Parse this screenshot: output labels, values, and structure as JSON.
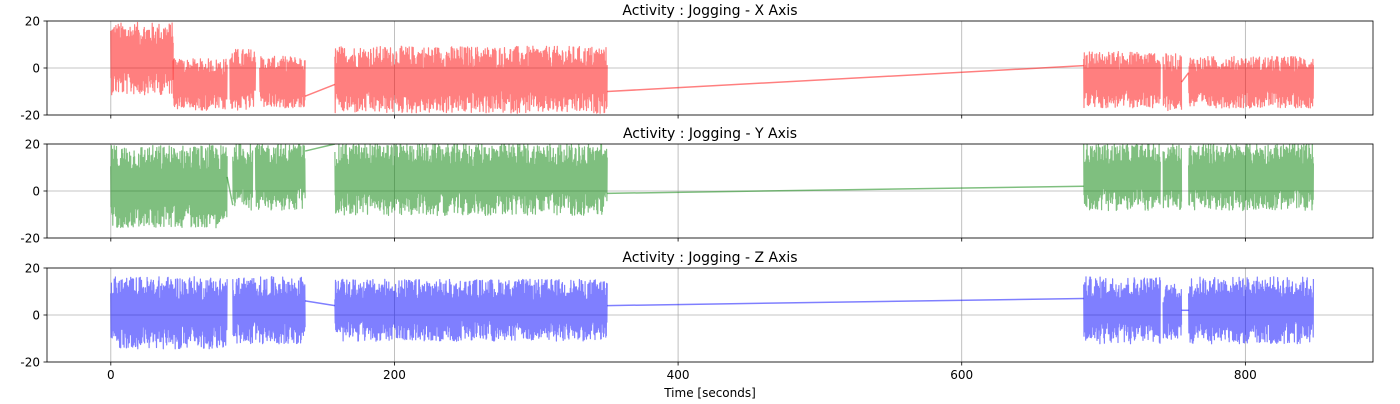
{
  "figure": {
    "xlabel": "Time [seconds]"
  },
  "chart_data": [
    {
      "type": "line",
      "title": "Activity : Jogging - X Axis",
      "xlabel": "",
      "ylabel": "",
      "xlim": [
        -45,
        890
      ],
      "ylim": [
        -20,
        20
      ],
      "xticks": [
        0,
        200,
        400,
        600,
        800
      ],
      "yticks": [
        -20,
        0,
        20
      ],
      "show_xticklabels": false,
      "grid": true,
      "color": "#ff0000",
      "segments": [
        {
          "x0": 0,
          "x1": 44,
          "center": 4,
          "amp": 14
        },
        {
          "x0": 44,
          "x1": 82,
          "center": -7,
          "amp": 10
        },
        {
          "x0": 84,
          "x1": 102,
          "center": -5,
          "amp": 12
        },
        {
          "x0": 105,
          "x1": 137,
          "center": -6,
          "amp": 10
        },
        {
          "x0": 158,
          "x1": 350,
          "center": -5,
          "amp": 13
        },
        {
          "x0": 686,
          "x1": 740,
          "center": -5,
          "amp": 11
        },
        {
          "x0": 742,
          "x1": 755,
          "center": -6,
          "amp": 11
        },
        {
          "x0": 760,
          "x1": 848,
          "center": -6,
          "amp": 10
        }
      ],
      "connectors": [
        {
          "from": [
            137,
            -12
          ],
          "to": [
            158,
            -7
          ]
        },
        {
          "from": [
            350,
            -10
          ],
          "to": [
            686,
            1
          ]
        },
        {
          "from": [
            755,
            -6
          ],
          "to": [
            760,
            -2
          ]
        }
      ]
    },
    {
      "type": "line",
      "title": "Activity : Jogging - Y Axis",
      "xlabel": "",
      "ylabel": "",
      "xlim": [
        -45,
        890
      ],
      "ylim": [
        -20,
        20
      ],
      "xticks": [
        0,
        200,
        400,
        600,
        800
      ],
      "yticks": [
        -20,
        0,
        20
      ],
      "show_xticklabels": false,
      "grid": true,
      "color": "#008000",
      "segments": [
        {
          "x0": 0,
          "x1": 82,
          "center": 2,
          "amp": 16
        },
        {
          "x0": 86,
          "x1": 100,
          "center": 6,
          "amp": 13
        },
        {
          "x0": 102,
          "x1": 137,
          "center": 6,
          "amp": 13
        },
        {
          "x0": 158,
          "x1": 350,
          "center": 5,
          "amp": 14
        },
        {
          "x0": 686,
          "x1": 740,
          "center": 6,
          "amp": 13
        },
        {
          "x0": 742,
          "x1": 755,
          "center": 6,
          "amp": 13
        },
        {
          "x0": 760,
          "x1": 848,
          "center": 6,
          "amp": 13
        }
      ],
      "connectors": [
        {
          "from": [
            82,
            6
          ],
          "to": [
            86,
            -6
          ]
        },
        {
          "from": [
            137,
            17
          ],
          "to": [
            158,
            20
          ]
        },
        {
          "from": [
            350,
            -1
          ],
          "to": [
            686,
            2
          ]
        }
      ]
    },
    {
      "type": "line",
      "title": "Activity : Jogging - Z Axis",
      "xlabel": "Time [seconds]",
      "ylabel": "",
      "xlim": [
        -45,
        890
      ],
      "ylim": [
        -20,
        20
      ],
      "xticks": [
        0,
        200,
        400,
        600,
        800
      ],
      "yticks": [
        -20,
        0,
        20
      ],
      "show_xticklabels": true,
      "grid": true,
      "color": "#0000ff",
      "segments": [
        {
          "x0": 0,
          "x1": 82,
          "center": 1,
          "amp": 14
        },
        {
          "x0": 86,
          "x1": 137,
          "center": 2,
          "amp": 13
        },
        {
          "x0": 158,
          "x1": 350,
          "center": 2,
          "amp": 12
        },
        {
          "x0": 686,
          "x1": 740,
          "center": 2,
          "amp": 13
        },
        {
          "x0": 742,
          "x1": 755,
          "center": 1,
          "amp": 11
        },
        {
          "x0": 760,
          "x1": 848,
          "center": 2,
          "amp": 13
        }
      ],
      "connectors": [
        {
          "from": [
            137,
            6
          ],
          "to": [
            158,
            4
          ]
        },
        {
          "from": [
            350,
            4
          ],
          "to": [
            686,
            7
          ]
        },
        {
          "from": [
            755,
            2
          ],
          "to": [
            760,
            2
          ]
        }
      ]
    }
  ]
}
